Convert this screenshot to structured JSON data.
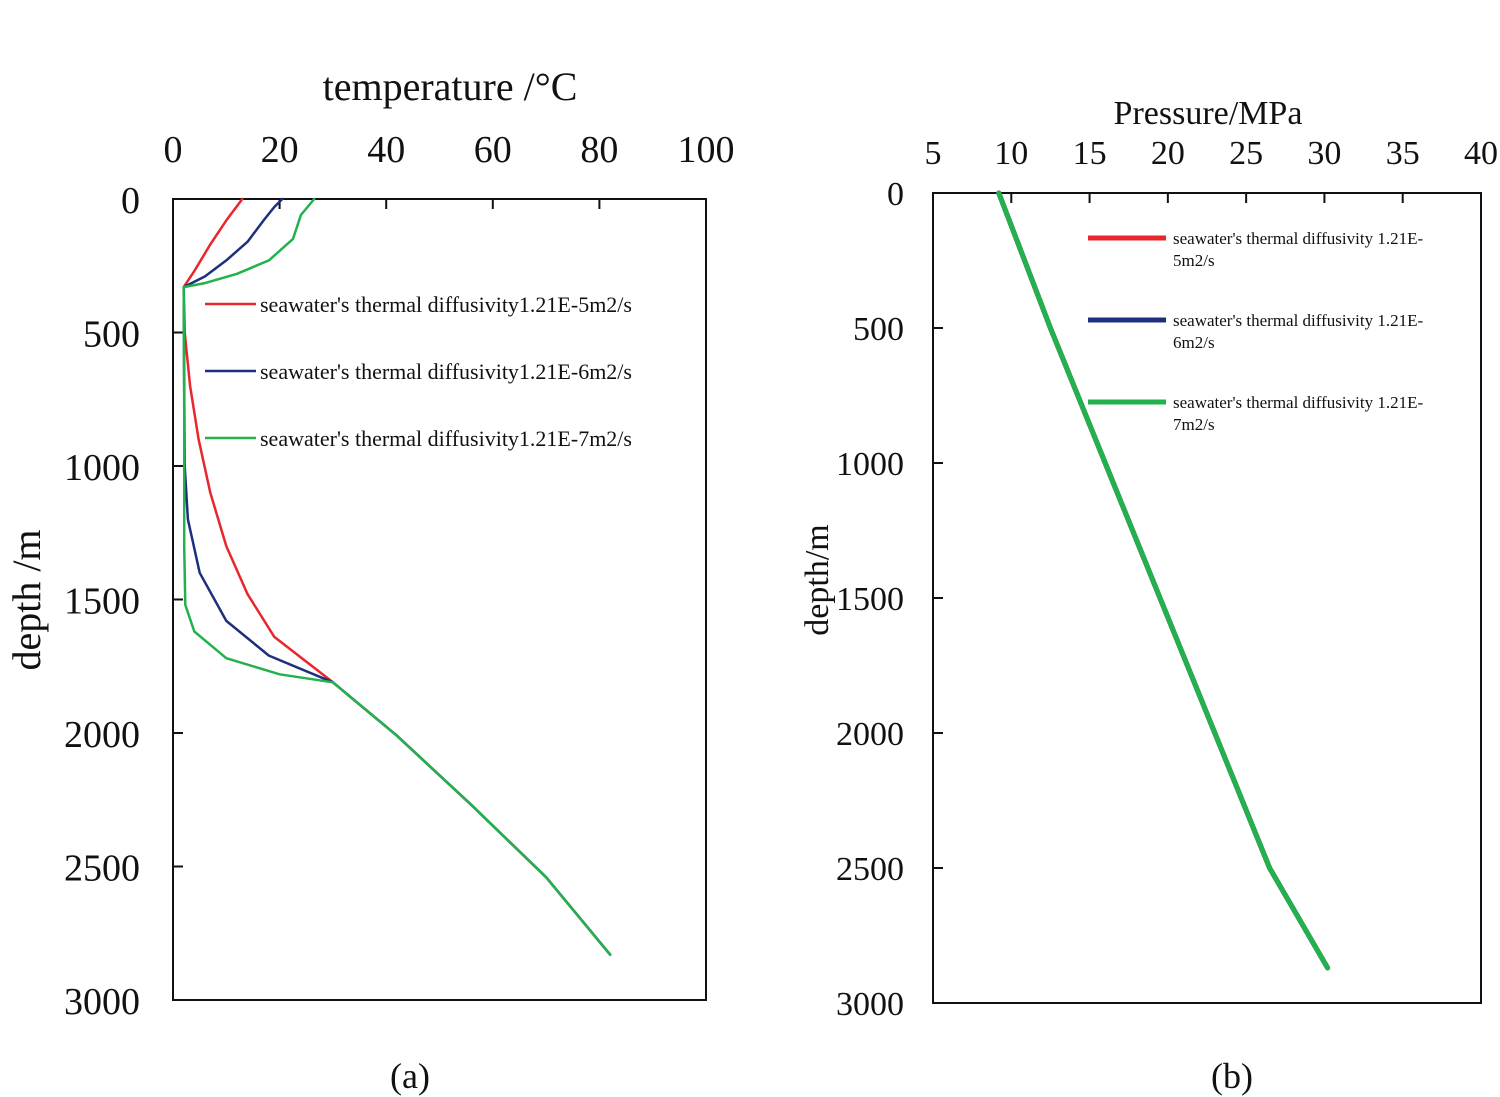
{
  "charts": [
    {
      "type": "line",
      "caption": "(a)",
      "xlabel": "temperature /°C",
      "ylabel": "depth /m",
      "x_axis_position": "top",
      "y_axis_inverted": true,
      "xlim": [
        0,
        100
      ],
      "ylim": [
        0,
        3000
      ],
      "x_ticks": [
        "0",
        "20",
        "40",
        "60",
        "80",
        "100"
      ],
      "y_ticks": [
        "0",
        "500",
        "1000",
        "1500",
        "2000",
        "2500",
        "3000"
      ],
      "legend_position": "upper-right",
      "legend_line_lengths": [
        "short"
      ],
      "series": [
        {
          "name": "seawater's thermal diffusivity1.21E-5m2/s",
          "color": "#e8262b",
          "points": [
            [
              13,
              0
            ],
            [
              10,
              80
            ],
            [
              7,
              170
            ],
            [
              4,
              270
            ],
            [
              2,
              330
            ],
            [
              2.2,
              500
            ],
            [
              3.2,
              700
            ],
            [
              4.8,
              900
            ],
            [
              7,
              1100
            ],
            [
              10,
              1300
            ],
            [
              14,
              1480
            ],
            [
              19,
              1640
            ],
            [
              30,
              1810
            ],
            [
              42,
              2010
            ],
            [
              56,
              2270
            ],
            [
              70,
              2540
            ],
            [
              82,
              2830
            ]
          ]
        },
        {
          "name": "seawater's thermal diffusivity1.21E-6m2/s",
          "color": "#1d2f7e",
          "points": [
            [
              20.5,
              0
            ],
            [
              19,
              30
            ],
            [
              17,
              80
            ],
            [
              14,
              160
            ],
            [
              10,
              230
            ],
            [
              6,
              290
            ],
            [
              2,
              330
            ],
            [
              2.1,
              700
            ],
            [
              2.2,
              1000
            ],
            [
              2.8,
              1200
            ],
            [
              5,
              1400
            ],
            [
              10,
              1580
            ],
            [
              18,
              1710
            ],
            [
              30,
              1810
            ],
            [
              42,
              2010
            ],
            [
              56,
              2270
            ],
            [
              70,
              2540
            ],
            [
              82,
              2830
            ]
          ]
        },
        {
          "name": "seawater's thermal diffusivity1.21E-7m2/s",
          "color": "#22b14c",
          "points": [
            [
              26.5,
              0
            ],
            [
              24,
              60
            ],
            [
              22.5,
              150
            ],
            [
              18,
              230
            ],
            [
              12,
              280
            ],
            [
              6,
              315
            ],
            [
              2,
              330
            ],
            [
              2.1,
              800
            ],
            [
              2.1,
              1300
            ],
            [
              2.3,
              1520
            ],
            [
              4,
              1620
            ],
            [
              10,
              1720
            ],
            [
              20,
              1780
            ],
            [
              30,
              1810
            ],
            [
              42,
              2010
            ],
            [
              56,
              2270
            ],
            [
              70,
              2540
            ],
            [
              82,
              2830
            ]
          ]
        }
      ]
    },
    {
      "type": "line",
      "caption": "(b)",
      "xlabel": "Pressure/MPa",
      "ylabel": "depth/m",
      "x_axis_position": "top",
      "y_axis_inverted": true,
      "xlim": [
        5,
        40
      ],
      "ylim": [
        0,
        3000
      ],
      "x_ticks": [
        "5",
        "10",
        "15",
        "20",
        "25",
        "30",
        "35",
        "40"
      ],
      "y_ticks": [
        "0",
        "500",
        "1000",
        "1500",
        "2000",
        "2500",
        "3000"
      ],
      "legend_position": "upper-right",
      "series": [
        {
          "name": "seawater's thermal diffusivity 1.21E-5m2/s",
          "legend_lines": [
            "seawater's thermal diffusivity 1.21E-",
            "5m2/s"
          ],
          "color": "#e8262b",
          "points": [
            [
              9.2,
              0
            ],
            [
              12.5,
              500
            ],
            [
              16,
              1000
            ],
            [
              19.5,
              1500
            ],
            [
              23,
              2000
            ],
            [
              26.5,
              2500
            ],
            [
              30.2,
              2870
            ]
          ]
        },
        {
          "name": "seawater's thermal diffusivity 1.21E-6m2/s",
          "legend_lines": [
            "seawater's thermal diffusivity 1.21E-",
            "6m2/s"
          ],
          "color": "#1d2f7e",
          "points": [
            [
              9.2,
              0
            ],
            [
              12.5,
              500
            ],
            [
              16,
              1000
            ],
            [
              19.5,
              1500
            ],
            [
              23,
              2000
            ],
            [
              26.5,
              2500
            ],
            [
              30.2,
              2870
            ]
          ]
        },
        {
          "name": "seawater's thermal diffusivity 1.21E-7m2/s",
          "legend_lines": [
            "seawater's thermal diffusivity 1.21E-",
            "7m2/s"
          ],
          "color": "#22b14c",
          "points": [
            [
              9.2,
              0
            ],
            [
              12.5,
              500
            ],
            [
              16,
              1000
            ],
            [
              19.5,
              1500
            ],
            [
              23,
              2000
            ],
            [
              26.5,
              2500
            ],
            [
              30.2,
              2870
            ]
          ]
        }
      ]
    }
  ]
}
